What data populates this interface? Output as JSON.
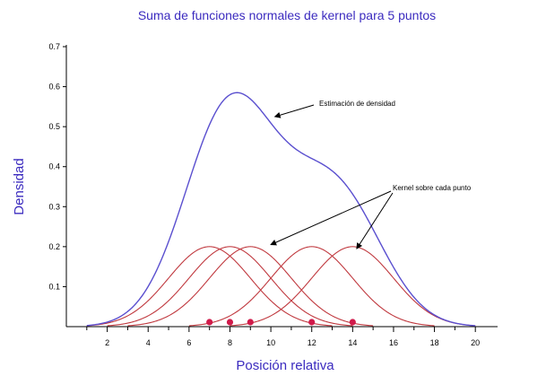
{
  "chart_data": {
    "type": "line",
    "title": "Suma de funciones normales de kernel para 5 puntos",
    "xlabel": "Posición relativa",
    "ylabel": "Densidad",
    "xlim": [
      0,
      21
    ],
    "ylim": [
      0,
      0.7
    ],
    "x_ticks": [
      2,
      4,
      6,
      8,
      10,
      12,
      14,
      16,
      18,
      20
    ],
    "y_ticks": [
      0.1,
      0.2,
      0.3,
      0.4,
      0.5,
      0.6,
      0.7
    ],
    "points": [
      7,
      8,
      9,
      12,
      14
    ],
    "kernel_sd": 2,
    "kernel_peak": 0.2,
    "grid": false,
    "series": [
      {
        "color": "#5a4fcf",
        "kind": "density",
        "peak": 0.585,
        "peak_x": 8.3
      },
      {
        "color": "#c0393f",
        "kind": "kernels"
      }
    ],
    "point_color": "#d01a4a",
    "title_color": "#3b2bbf",
    "annotations": [
      {
        "text": "Estimación de densidad",
        "target_x": 10.2,
        "target_y": 0.525
      },
      {
        "text": "Kernel sobre cada punto",
        "targets": [
          [
            10.0,
            0.205
          ],
          [
            14.2,
            0.195
          ]
        ]
      }
    ]
  }
}
